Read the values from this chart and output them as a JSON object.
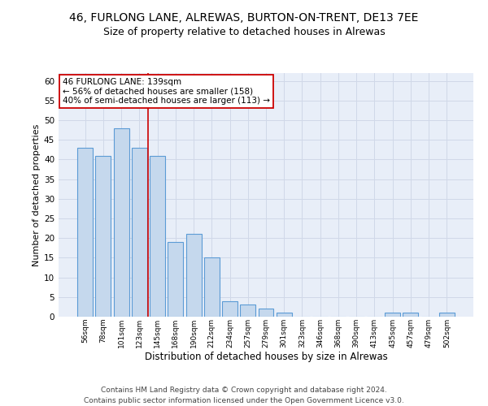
{
  "title_line1": "46, FURLONG LANE, ALREWAS, BURTON-ON-TRENT, DE13 7EE",
  "title_line2": "Size of property relative to detached houses in Alrewas",
  "xlabel": "Distribution of detached houses by size in Alrewas",
  "ylabel": "Number of detached properties",
  "categories": [
    "56sqm",
    "78sqm",
    "101sqm",
    "123sqm",
    "145sqm",
    "168sqm",
    "190sqm",
    "212sqm",
    "234sqm",
    "257sqm",
    "279sqm",
    "301sqm",
    "323sqm",
    "346sqm",
    "368sqm",
    "390sqm",
    "413sqm",
    "435sqm",
    "457sqm",
    "479sqm",
    "502sqm"
  ],
  "values": [
    43,
    41,
    48,
    43,
    41,
    19,
    21,
    15,
    4,
    3,
    2,
    1,
    0,
    0,
    0,
    0,
    0,
    1,
    1,
    0,
    1
  ],
  "bar_color": "#c5d8ed",
  "bar_edge_color": "#5b9bd5",
  "vline_x": 3.5,
  "vline_color": "#cc0000",
  "annotation_text": "46 FURLONG LANE: 139sqm\n← 56% of detached houses are smaller (158)\n40% of semi-detached houses are larger (113) →",
  "annotation_box_color": "white",
  "annotation_box_edge": "#cc0000",
  "ylim": [
    0,
    62
  ],
  "yticks": [
    0,
    5,
    10,
    15,
    20,
    25,
    30,
    35,
    40,
    45,
    50,
    55,
    60
  ],
  "grid_color": "#d0d8e8",
  "background_color": "#e8eef8",
  "footer": "Contains HM Land Registry data © Crown copyright and database right 2024.\nContains public sector information licensed under the Open Government Licence v3.0.",
  "title_fontsize": 10,
  "subtitle_fontsize": 9,
  "xlabel_fontsize": 8.5,
  "ylabel_fontsize": 8,
  "bar_width": 0.85
}
